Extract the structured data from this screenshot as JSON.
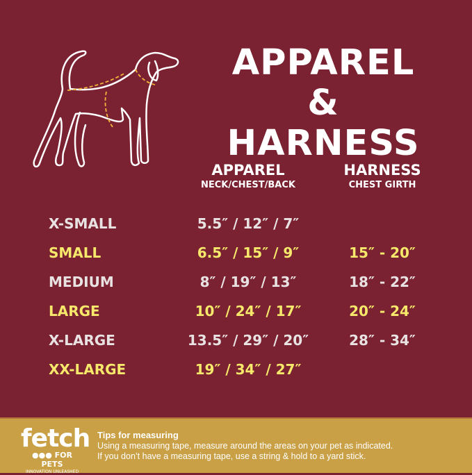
{
  "title": {
    "line1": "APPAREL",
    "line2": "& HARNESS"
  },
  "columns": {
    "apparel": {
      "heading": "APPAREL",
      "sub": "NECK/CHEST/BACK"
    },
    "harness": {
      "heading": "HARNESS",
      "sub": "CHEST GIRTH"
    }
  },
  "rows": [
    {
      "size": "X-SMALL",
      "apparel": "5.5″ / 12″ / 7″",
      "harness": ""
    },
    {
      "size": "SMALL",
      "apparel": "6.5″ / 15″ / 9″",
      "harness": "15″ -  20″"
    },
    {
      "size": "MEDIUM",
      "apparel": "8″ / 19″ / 13″",
      "harness": "18″ -  22″"
    },
    {
      "size": "LARGE",
      "apparel": "10″ / 24″ / 17″",
      "harness": "20″ -  24″"
    },
    {
      "size": "X-LARGE",
      "apparel": "13.5″ / 29″ / 20″",
      "harness": "28″ -  34″"
    },
    {
      "size": "XX-LARGE",
      "apparel": "19″ / 34″ / 27″",
      "harness": ""
    }
  ],
  "logo": {
    "name": "fetch",
    "sub": "FOR PETS",
    "tagline": "INNOVATION UNLEASHED"
  },
  "tips": {
    "title": "Tips for measuring",
    "line1": "Using a measuring tape, measure around the areas on your pet as indicated.",
    "line2": "If you don’t have a measuring tape, use a string & hold to a yard stick."
  },
  "colors": {
    "background": "#7a2231",
    "footer": "#c9a046",
    "highlight": "#f6e86b",
    "measure_lines": "#f0b53a"
  },
  "icons": {
    "dog": "dog-outline-measurement-icon"
  }
}
